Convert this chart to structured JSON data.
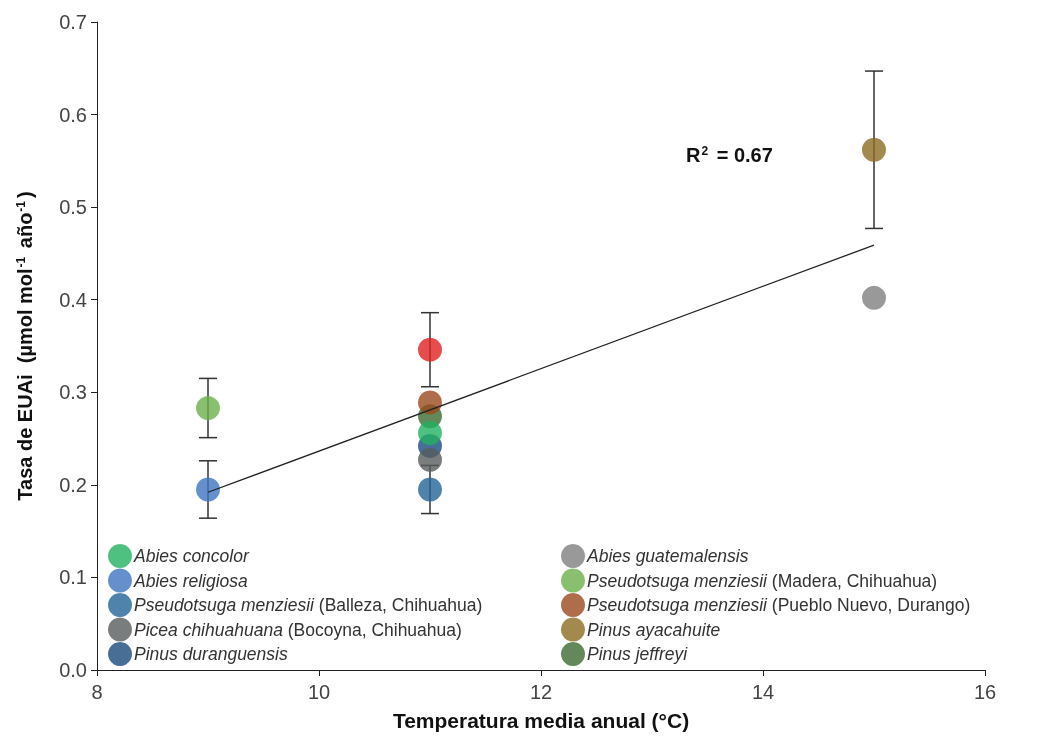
{
  "chart_data": {
    "type": "scatter",
    "xlabel": "Temperatura media anual (°C)",
    "ylabel": "Tasa de EUAi  (µmol mol$^{-1}$ año$^{-1}$)",
    "annotations": [
      "R$^{2}$ = 0.67"
    ],
    "xlim": [
      8,
      16
    ],
    "xticks": [
      8,
      10,
      12,
      14,
      16
    ],
    "ylim": [
      0,
      0.7
    ],
    "yticks": [
      {
        "value": 0,
        "label": "0.0"
      },
      0.1,
      0.2,
      0.3,
      0.4,
      0.5,
      0.6,
      0.7
    ],
    "grid": false,
    "legend": "bottom left",
    "marker": "circle",
    "series": [
      {
        "name": "Abies concolor",
        "color": "#22b060",
        "x": [
          11
        ],
        "values": [
          0.256
        ]
      },
      {
        "name": "Abies guatemalensis",
        "color": "#808080",
        "colors": [
          "#e02020",
          "#808080"
        ],
        "x": [
          11,
          15
        ],
        "values": [
          0.346,
          0.402
        ],
        "errors": [
          0.04,
          null
        ]
      },
      {
        "name": "Abies religiosa",
        "color": "#3f74c0",
        "x": [
          9
        ],
        "values": [
          0.195
        ],
        "errors": [
          0.031
        ]
      },
      {
        "name": "Pseudotsuga menziesii (Madera, Chihuahua)",
        "color": "#6ab04c",
        "x": [
          9
        ],
        "values": [
          0.283
        ],
        "errors": [
          0.032
        ]
      },
      {
        "name": "Pseudotsuga menziesii (Balleza, Chihuahua)",
        "color": "#236496",
        "x": [
          11
        ],
        "values": [
          0.195
        ],
        "errors": [
          0.026
        ]
      },
      {
        "name": "Pseudotsuga menziesii (Pueblo Nuevo, Durango)",
        "color": "#9a4a1e",
        "x": [
          11
        ],
        "values": [
          0.289
        ]
      },
      {
        "name": "Picea chihuahuana (Bocoyna, Chihuahua)",
        "color": "#585c5e",
        "x": [
          11
        ],
        "values": [
          0.227
        ]
      },
      {
        "name": "Pinus ayacahuite",
        "color": "#8c6c20",
        "x": [
          15
        ],
        "values": [
          0.562
        ],
        "errors": [
          0.085
        ]
      },
      {
        "name": "Pinus duranguensis",
        "color": "#1a4a7c",
        "x": [
          11
        ],
        "values": [
          0.242
        ]
      },
      {
        "name": "Pinus jeffreyi",
        "color": "#3c6a30",
        "x": [
          11
        ],
        "values": [
          0.274
        ]
      },
      {
        "type": "line",
        "color": "#222222",
        "marker": "none",
        "x": [
          9,
          15
        ],
        "values": [
          0.192,
          0.459
        ]
      }
    ]
  }
}
